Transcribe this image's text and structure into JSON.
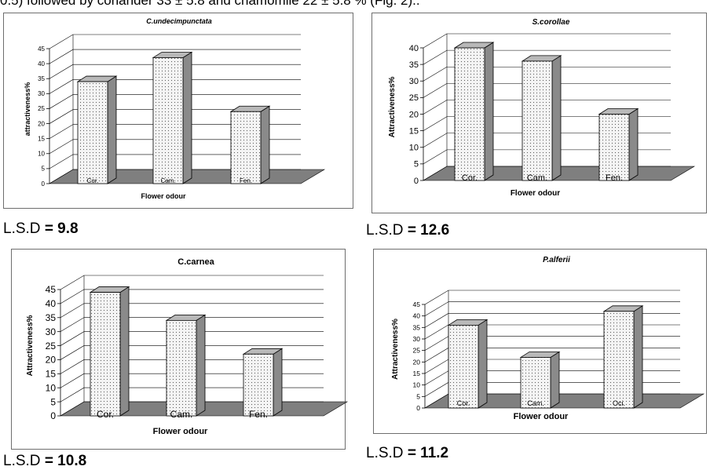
{
  "header_text": "0.5) followed by coriander 33 ± 5.8 and chamomile 22 ± 5.8 % (Fig. 2)..",
  "chart_data": [
    {
      "type": "bar",
      "title": "C.undecimpunctata",
      "title_italic": true,
      "categories": [
        "Cor.",
        "Cam.",
        "Fen."
      ],
      "values": [
        34,
        42,
        24
      ],
      "ylabel": "attractiveness%",
      "xlabel": "Flower odour",
      "ylim": [
        0,
        45
      ],
      "ytick_step": 5,
      "grid": true,
      "lsd_label": "L.S.D",
      "lsd_value": "= 9.8"
    },
    {
      "type": "bar",
      "title": "S.corollae",
      "title_italic": true,
      "categories": [
        "Cor.",
        "Cam.",
        "Fen."
      ],
      "values": [
        40,
        36,
        20
      ],
      "ylabel": "Attractiveness%",
      "xlabel": "Flower odour",
      "ylim": [
        0,
        40
      ],
      "ytick_step": 5,
      "grid": true,
      "lsd_label": "L.S.D",
      "lsd_value": "= 12.6"
    },
    {
      "type": "bar",
      "title": "C.carnea",
      "title_italic": false,
      "categories": [
        "Cor.",
        "Cam.",
        "Fen."
      ],
      "values": [
        44,
        34,
        22
      ],
      "ylabel": "Attractiveness%",
      "xlabel": "Flower odour",
      "ylim": [
        0,
        45
      ],
      "ytick_step": 5,
      "grid": true,
      "lsd_label": "L.S.D",
      "lsd_value": "= 10.8"
    },
    {
      "type": "bar",
      "title": "P.alferii",
      "title_italic": true,
      "categories": [
        "Cor.",
        "Cam.",
        "Oci."
      ],
      "values": [
        36,
        22,
        42
      ],
      "ylabel": "Attractiveness%",
      "xlabel": "Flower odour",
      "ylim": [
        0,
        45
      ],
      "ytick_step": 5,
      "grid": true,
      "lsd_label": "L.S.D",
      "lsd_value": "= 11.2"
    }
  ],
  "colors": {
    "bar_front": "#f4f4f4",
    "bar_side": "#8a8a8a",
    "bar_top": "#b8b8b8",
    "floor": "#7f7f7f",
    "grid": "#000000"
  }
}
